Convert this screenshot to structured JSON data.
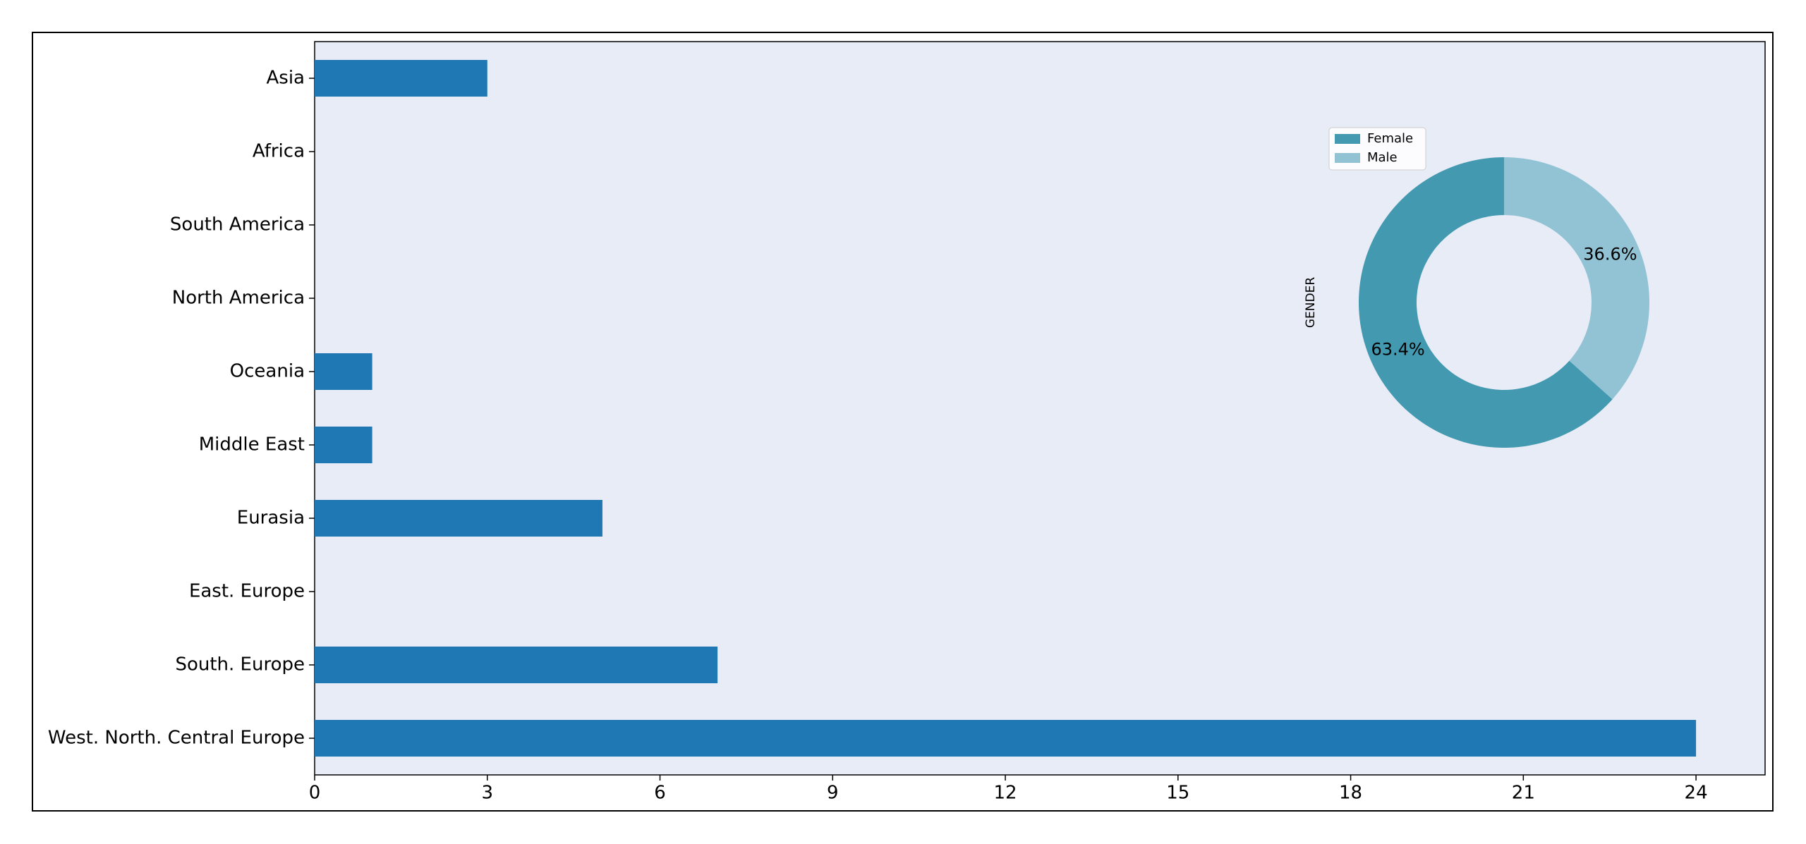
{
  "chart_data": [
    {
      "type": "barh",
      "categories": [
        "Asia",
        "Africa",
        "South America",
        "North America",
        "Oceania",
        "Middle East",
        "Eurasia",
        "East. Europe",
        "South. Europe",
        "West. North. Central Europe"
      ],
      "values": [
        3,
        0,
        0,
        0,
        1,
        1,
        5,
        0,
        7,
        24
      ],
      "color": "#1f77b4",
      "xlim": [
        0,
        25.2
      ],
      "xticks": [
        0,
        3,
        6,
        9,
        12,
        15,
        18,
        21,
        24
      ]
    },
    {
      "type": "pie",
      "ylabel": "GENDER",
      "labels": [
        "Female",
        "Male"
      ],
      "values": [
        63.4,
        36.6
      ],
      "value_labels": [
        "63.4%",
        "36.6%"
      ],
      "colors": [
        "#4399b0",
        "#92c3d5"
      ]
    }
  ]
}
